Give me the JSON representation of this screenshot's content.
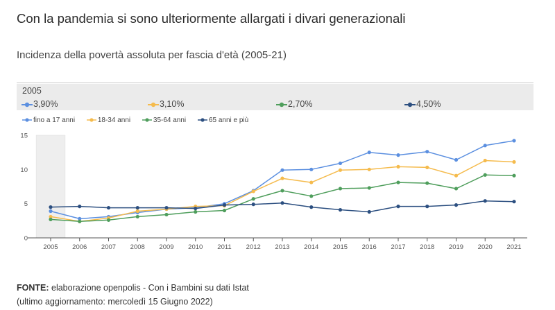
{
  "header": {
    "title": "Con la pandemia si sono ulteriormente allargati i divari generazionali",
    "subtitle": "Incidenza della povertà assoluta per fascia d'età (2005-21)"
  },
  "tooltip": {
    "year": "2005",
    "values": [
      "3,90%",
      "3,10%",
      "2,70%",
      "4,50%"
    ]
  },
  "footer": {
    "source_label": "FONTE:",
    "source_text": " elaborazione openpolis - Con i Bambini su dati Istat",
    "updated": "(ultimo aggiornamento: mercoledì 15 Giugno 2022)"
  },
  "colors": {
    "series": [
      "#5b8fe0",
      "#f5bb4d",
      "#4f9e5c",
      "#2c4f80"
    ],
    "highlight_band": "#eeeeee",
    "axis": "#555555",
    "gridline": "#e3e3e3"
  },
  "chart_data": {
    "type": "line",
    "title": "Incidenza della povertà assoluta per fascia d'età (2005-21)",
    "xlabel": "",
    "ylabel": "",
    "x": [
      "2005",
      "2006",
      "2007",
      "2008",
      "2009",
      "2010",
      "2011",
      "2012",
      "2013",
      "2014",
      "2015",
      "2016",
      "2017",
      "2018",
      "2019",
      "2020",
      "2021"
    ],
    "ylim": [
      0,
      15
    ],
    "yticks": [
      "0",
      "5",
      "10",
      "15"
    ],
    "highlighted_x": "2005",
    "legend_position": "top-left",
    "grid": false,
    "series": [
      {
        "name": "fino a 17 anni",
        "values": [
          3.9,
          2.8,
          3.1,
          3.7,
          4.2,
          4.4,
          5.0,
          6.9,
          9.9,
          10.0,
          10.9,
          12.5,
          12.1,
          12.6,
          11.4,
          13.5,
          14.2
        ]
      },
      {
        "name": "18-34 anni",
        "values": [
          3.1,
          2.4,
          2.9,
          3.9,
          4.2,
          4.6,
          4.7,
          6.8,
          8.7,
          8.1,
          9.9,
          10.0,
          10.4,
          10.3,
          9.1,
          11.3,
          11.1
        ]
      },
      {
        "name": "35-64 anni",
        "values": [
          2.7,
          2.4,
          2.6,
          3.1,
          3.4,
          3.8,
          4.0,
          5.7,
          6.9,
          6.1,
          7.2,
          7.3,
          8.1,
          8.0,
          7.2,
          9.2,
          9.1
        ]
      },
      {
        "name": "65 anni e più",
        "values": [
          4.5,
          4.6,
          4.4,
          4.4,
          4.4,
          4.3,
          4.8,
          4.9,
          5.1,
          4.5,
          4.1,
          3.8,
          4.6,
          4.6,
          4.8,
          5.4,
          5.3
        ]
      }
    ]
  }
}
